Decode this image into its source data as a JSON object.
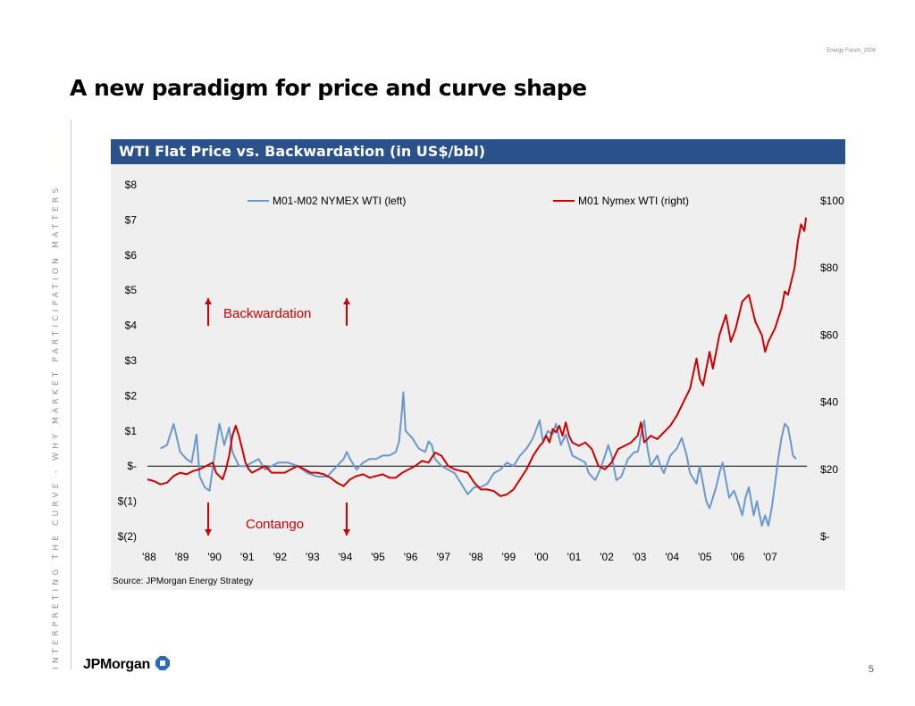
{
  "header": {
    "forum_label": "Energy Forum_2008",
    "page_title": "A new paradigm for price and curve shape"
  },
  "sidebar": {
    "tagline": "INTERPRETING THE CURVE - WHY MARKET PARTICIPATION MATTERS"
  },
  "footer": {
    "logo_text": "JPMorgan",
    "page_number": "5"
  },
  "colors": {
    "header_bg": "#2a5189",
    "panel_bg": "#efefef",
    "spread_line": "#6b98cc",
    "price_line": "#cc0000",
    "annotation": "#cc0000"
  },
  "chart_data": {
    "type": "line",
    "title": "WTI Flat Price vs. Backwardation (in US$/bbl)",
    "source": "Source: JPMorgan Energy Strategy",
    "legend": {
      "placement": "top",
      "entries": [
        "M01-M02 NYMEX WTI (left)",
        "M01 Nymex WTI (right)"
      ]
    },
    "annotations": {
      "backwardation": "Backwardation",
      "contango": "Contango"
    },
    "x_tick_labels": [
      "'88",
      "'89",
      "'90",
      "'91",
      "'92",
      "'93",
      "'94",
      "'95",
      "'96",
      "'97",
      "'98",
      "'99",
      "'00",
      "'01",
      "'02",
      "'03",
      "'04",
      "'05",
      "'06",
      "'07"
    ],
    "x_range": [
      1988,
      2008.15
    ],
    "y_left": {
      "range": [
        -2,
        8
      ],
      "tick_values": [
        8,
        7,
        6,
        5,
        4,
        3,
        2,
        1,
        0,
        -1,
        -2
      ],
      "tick_labels": [
        "$8",
        "$7",
        "$6",
        "$5",
        "$4",
        "$3",
        "$2",
        "$1",
        "$-",
        "$(1)",
        "$(2)"
      ]
    },
    "y_right": {
      "range": [
        0,
        100
      ],
      "tick_values": [
        100,
        80,
        60,
        40,
        20,
        0
      ],
      "tick_labels": [
        "$100",
        "$80",
        "$60",
        "$40",
        "$20",
        "$-"
      ]
    },
    "series": [
      {
        "name": "M01-M02 NYMEX WTI (left)",
        "axis": "left",
        "points": [
          [
            1988.4,
            0.5
          ],
          [
            1988.6,
            0.6
          ],
          [
            1988.8,
            1.2
          ],
          [
            1989.0,
            0.4
          ],
          [
            1989.2,
            0.2
          ],
          [
            1989.35,
            0.1
          ],
          [
            1989.5,
            0.9
          ],
          [
            1989.6,
            -0.3
          ],
          [
            1989.75,
            -0.6
          ],
          [
            1989.9,
            -0.7
          ],
          [
            1990.05,
            0.3
          ],
          [
            1990.2,
            1.2
          ],
          [
            1990.35,
            0.6
          ],
          [
            1990.5,
            1.1
          ],
          [
            1990.6,
            0.4
          ],
          [
            1990.8,
            0.0
          ],
          [
            1991.0,
            0.0
          ],
          [
            1991.2,
            0.1
          ],
          [
            1991.4,
            0.2
          ],
          [
            1991.6,
            -0.1
          ],
          [
            1991.8,
            0.0
          ],
          [
            1992.0,
            0.1
          ],
          [
            1992.3,
            0.1
          ],
          [
            1992.6,
            0.0
          ],
          [
            1992.9,
            -0.2
          ],
          [
            1993.2,
            -0.3
          ],
          [
            1993.5,
            -0.3
          ],
          [
            1993.8,
            0.0
          ],
          [
            1994.0,
            0.2
          ],
          [
            1994.1,
            0.4
          ],
          [
            1994.2,
            0.2
          ],
          [
            1994.4,
            -0.1
          ],
          [
            1994.6,
            0.1
          ],
          [
            1994.8,
            0.2
          ],
          [
            1995.0,
            0.2
          ],
          [
            1995.2,
            0.3
          ],
          [
            1995.4,
            0.3
          ],
          [
            1995.6,
            0.4
          ],
          [
            1995.7,
            0.7
          ],
          [
            1995.78,
            1.5
          ],
          [
            1995.83,
            2.1
          ],
          [
            1995.9,
            1.0
          ],
          [
            1996.1,
            0.8
          ],
          [
            1996.3,
            0.5
          ],
          [
            1996.5,
            0.4
          ],
          [
            1996.6,
            0.7
          ],
          [
            1996.7,
            0.6
          ],
          [
            1996.8,
            0.2
          ],
          [
            1997.0,
            0.0
          ],
          [
            1997.2,
            -0.1
          ],
          [
            1997.4,
            -0.2
          ],
          [
            1997.6,
            -0.5
          ],
          [
            1997.8,
            -0.8
          ],
          [
            1998.0,
            -0.6
          ],
          [
            1998.2,
            -0.6
          ],
          [
            1998.4,
            -0.5
          ],
          [
            1998.6,
            -0.2
          ],
          [
            1998.8,
            -0.1
          ],
          [
            1999.0,
            0.1
          ],
          [
            1999.2,
            0.0
          ],
          [
            1999.4,
            0.3
          ],
          [
            1999.6,
            0.5
          ],
          [
            1999.8,
            0.8
          ],
          [
            2000.0,
            1.3
          ],
          [
            2000.1,
            0.7
          ],
          [
            2000.25,
            1.0
          ],
          [
            2000.4,
            0.9
          ],
          [
            2000.5,
            1.2
          ],
          [
            2000.65,
            0.6
          ],
          [
            2000.8,
            0.9
          ],
          [
            2001.0,
            0.3
          ],
          [
            2001.2,
            0.2
          ],
          [
            2001.4,
            0.1
          ],
          [
            2001.5,
            -0.2
          ],
          [
            2001.7,
            -0.4
          ],
          [
            2001.85,
            -0.1
          ],
          [
            2002.0,
            0.3
          ],
          [
            2002.1,
            0.6
          ],
          [
            2002.2,
            0.3
          ],
          [
            2002.35,
            -0.4
          ],
          [
            2002.5,
            -0.3
          ],
          [
            2002.7,
            0.2
          ],
          [
            2002.9,
            0.4
          ],
          [
            2003.0,
            0.4
          ],
          [
            2003.05,
            0.6
          ],
          [
            2003.1,
            0.9
          ],
          [
            2003.2,
            1.3
          ],
          [
            2003.3,
            0.5
          ],
          [
            2003.4,
            0.0
          ],
          [
            2003.6,
            0.3
          ],
          [
            2003.7,
            0.0
          ],
          [
            2003.8,
            -0.2
          ],
          [
            2004.0,
            0.3
          ],
          [
            2004.2,
            0.5
          ],
          [
            2004.35,
            0.8
          ],
          [
            2004.5,
            0.3
          ],
          [
            2004.6,
            -0.2
          ],
          [
            2004.8,
            -0.5
          ],
          [
            2004.9,
            0.0
          ],
          [
            2005.0,
            -0.5
          ],
          [
            2005.1,
            -1.0
          ],
          [
            2005.2,
            -1.2
          ],
          [
            2005.3,
            -0.9
          ],
          [
            2005.4,
            -0.6
          ],
          [
            2005.5,
            -0.2
          ],
          [
            2005.6,
            0.1
          ],
          [
            2005.7,
            -0.4
          ],
          [
            2005.8,
            -0.9
          ],
          [
            2005.95,
            -0.7
          ],
          [
            2006.1,
            -1.1
          ],
          [
            2006.2,
            -1.4
          ],
          [
            2006.3,
            -0.9
          ],
          [
            2006.4,
            -0.6
          ],
          [
            2006.55,
            -1.4
          ],
          [
            2006.65,
            -1.0
          ],
          [
            2006.8,
            -1.7
          ],
          [
            2006.9,
            -1.4
          ],
          [
            2007.0,
            -1.7
          ],
          [
            2007.1,
            -1.2
          ],
          [
            2007.2,
            -0.5
          ],
          [
            2007.3,
            0.2
          ],
          [
            2007.4,
            0.8
          ],
          [
            2007.5,
            1.2
          ],
          [
            2007.6,
            1.1
          ],
          [
            2007.7,
            0.6
          ],
          [
            2007.75,
            0.3
          ],
          [
            2007.85,
            0.2
          ]
        ]
      },
      {
        "name": "M01 Nymex WTI (right)",
        "axis": "right",
        "points": [
          [
            1988.0,
            17
          ],
          [
            1988.2,
            16.5
          ],
          [
            1988.4,
            15.5
          ],
          [
            1988.6,
            16
          ],
          [
            1988.8,
            18
          ],
          [
            1989.0,
            19
          ],
          [
            1989.2,
            18.5
          ],
          [
            1989.4,
            19.5
          ],
          [
            1989.6,
            20
          ],
          [
            1989.8,
            21
          ],
          [
            1990.0,
            22
          ],
          [
            1990.1,
            19
          ],
          [
            1990.2,
            18
          ],
          [
            1990.3,
            17
          ],
          [
            1990.4,
            20
          ],
          [
            1990.5,
            24
          ],
          [
            1990.6,
            30
          ],
          [
            1990.7,
            33
          ],
          [
            1990.8,
            30
          ],
          [
            1990.9,
            26
          ],
          [
            1991.0,
            22
          ],
          [
            1991.1,
            20
          ],
          [
            1991.2,
            19
          ],
          [
            1991.4,
            20
          ],
          [
            1991.6,
            21
          ],
          [
            1991.8,
            19
          ],
          [
            1992.0,
            19
          ],
          [
            1992.2,
            19
          ],
          [
            1992.4,
            20
          ],
          [
            1992.6,
            21
          ],
          [
            1992.8,
            20
          ],
          [
            1993.0,
            19
          ],
          [
            1993.2,
            19
          ],
          [
            1993.4,
            18.5
          ],
          [
            1993.6,
            17.5
          ],
          [
            1993.8,
            16
          ],
          [
            1994.0,
            15
          ],
          [
            1994.2,
            17
          ],
          [
            1994.4,
            18
          ],
          [
            1994.6,
            18.5
          ],
          [
            1994.8,
            17.5
          ],
          [
            1995.0,
            18
          ],
          [
            1995.2,
            18.5
          ],
          [
            1995.4,
            17.5
          ],
          [
            1995.6,
            17.5
          ],
          [
            1995.8,
            19
          ],
          [
            1996.0,
            20
          ],
          [
            1996.2,
            21
          ],
          [
            1996.4,
            22.5
          ],
          [
            1996.6,
            22
          ],
          [
            1996.8,
            25
          ],
          [
            1997.0,
            24
          ],
          [
            1997.2,
            21
          ],
          [
            1997.4,
            20
          ],
          [
            1997.6,
            19.5
          ],
          [
            1997.8,
            19
          ],
          [
            1998.0,
            16
          ],
          [
            1998.2,
            14
          ],
          [
            1998.4,
            14
          ],
          [
            1998.6,
            13.5
          ],
          [
            1998.8,
            12
          ],
          [
            1999.0,
            12.5
          ],
          [
            1999.2,
            14
          ],
          [
            1999.4,
            17
          ],
          [
            1999.6,
            20
          ],
          [
            1999.8,
            24
          ],
          [
            2000.0,
            27
          ],
          [
            2000.1,
            28
          ],
          [
            2000.2,
            30
          ],
          [
            2000.3,
            28
          ],
          [
            2000.4,
            32
          ],
          [
            2000.5,
            31
          ],
          [
            2000.6,
            33
          ],
          [
            2000.7,
            30
          ],
          [
            2000.8,
            34
          ],
          [
            2000.9,
            30
          ],
          [
            2001.0,
            28
          ],
          [
            2001.2,
            27
          ],
          [
            2001.4,
            28
          ],
          [
            2001.6,
            26
          ],
          [
            2001.8,
            21
          ],
          [
            2002.0,
            20
          ],
          [
            2002.2,
            22
          ],
          [
            2002.4,
            26
          ],
          [
            2002.6,
            27
          ],
          [
            2002.8,
            28
          ],
          [
            2003.0,
            30
          ],
          [
            2003.1,
            34
          ],
          [
            2003.2,
            28
          ],
          [
            2003.4,
            30
          ],
          [
            2003.6,
            29
          ],
          [
            2003.8,
            31
          ],
          [
            2004.0,
            33
          ],
          [
            2004.2,
            36
          ],
          [
            2004.4,
            40
          ],
          [
            2004.6,
            44
          ],
          [
            2004.8,
            53
          ],
          [
            2004.9,
            47
          ],
          [
            2005.0,
            45
          ],
          [
            2005.2,
            55
          ],
          [
            2005.3,
            50
          ],
          [
            2005.5,
            60
          ],
          [
            2005.7,
            66
          ],
          [
            2005.85,
            58
          ],
          [
            2006.0,
            62
          ],
          [
            2006.2,
            70
          ],
          [
            2006.4,
            72
          ],
          [
            2006.6,
            64
          ],
          [
            2006.8,
            60
          ],
          [
            2006.9,
            55
          ],
          [
            2007.0,
            58
          ],
          [
            2007.2,
            62
          ],
          [
            2007.4,
            68
          ],
          [
            2007.5,
            73
          ],
          [
            2007.6,
            72
          ],
          [
            2007.8,
            80
          ],
          [
            2007.9,
            88
          ],
          [
            2008.0,
            93
          ],
          [
            2008.1,
            91
          ],
          [
            2008.15,
            95
          ]
        ]
      }
    ]
  }
}
